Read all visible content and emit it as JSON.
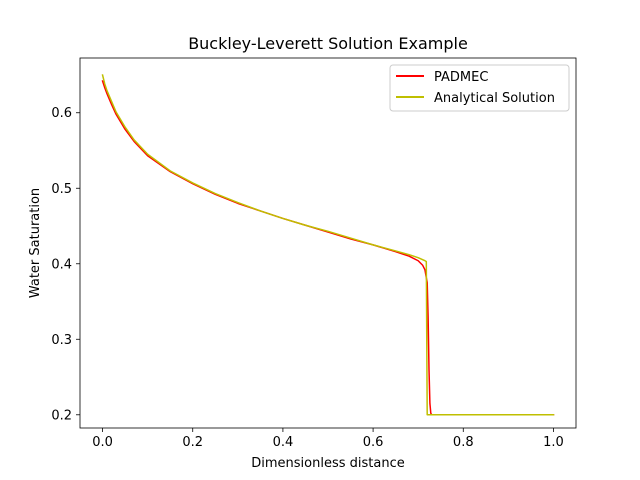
{
  "chart_data": {
    "type": "line",
    "title": "Buckley-Leverett Solution Example",
    "xlabel": "Dimensionless distance",
    "ylabel": "Water Saturation",
    "xlim": [
      -0.05,
      1.05
    ],
    "ylim": [
      0.1825,
      0.6725
    ],
    "xticks": [
      0.0,
      0.2,
      0.4,
      0.6,
      0.8,
      1.0
    ],
    "xtick_labels": [
      "0.0",
      "0.2",
      "0.4",
      "0.6",
      "0.8",
      "1.0"
    ],
    "yticks": [
      0.2,
      0.3,
      0.4,
      0.5,
      0.6
    ],
    "ytick_labels": [
      "0.2",
      "0.3",
      "0.4",
      "0.5",
      "0.6"
    ],
    "grid": false,
    "legend_position": "upper right",
    "series": [
      {
        "name": "PADMEC",
        "color": "#ff0000",
        "x": [
          0.0,
          0.005,
          0.01,
          0.02,
          0.03,
          0.05,
          0.07,
          0.1,
          0.15,
          0.2,
          0.25,
          0.3,
          0.35,
          0.4,
          0.45,
          0.5,
          0.55,
          0.6,
          0.65,
          0.68,
          0.7,
          0.71,
          0.715,
          0.72,
          0.722,
          0.724,
          0.726,
          0.728,
          0.73,
          0.75,
          0.8,
          0.9,
          1.0
        ],
        "y": [
          0.642,
          0.633,
          0.625,
          0.611,
          0.598,
          0.578,
          0.562,
          0.543,
          0.522,
          0.506,
          0.492,
          0.48,
          0.47,
          0.46,
          0.451,
          0.442,
          0.433,
          0.425,
          0.416,
          0.41,
          0.404,
          0.398,
          0.392,
          0.375,
          0.33,
          0.26,
          0.215,
          0.202,
          0.2,
          0.2,
          0.2,
          0.2,
          0.2
        ]
      },
      {
        "name": "Analytical Solution",
        "color": "#bfbf00",
        "x": [
          0.0,
          0.005,
          0.01,
          0.02,
          0.03,
          0.05,
          0.07,
          0.1,
          0.15,
          0.2,
          0.25,
          0.3,
          0.35,
          0.4,
          0.45,
          0.5,
          0.55,
          0.6,
          0.65,
          0.68,
          0.7,
          0.715,
          0.718,
          0.72,
          0.75,
          0.8,
          0.9,
          1.0
        ],
        "y": [
          0.65,
          0.638,
          0.629,
          0.615,
          0.601,
          0.581,
          0.564,
          0.545,
          0.523,
          0.507,
          0.493,
          0.481,
          0.47,
          0.46,
          0.451,
          0.443,
          0.434,
          0.425,
          0.417,
          0.412,
          0.408,
          0.404,
          0.403,
          0.2,
          0.2,
          0.2,
          0.2,
          0.2
        ]
      }
    ]
  }
}
